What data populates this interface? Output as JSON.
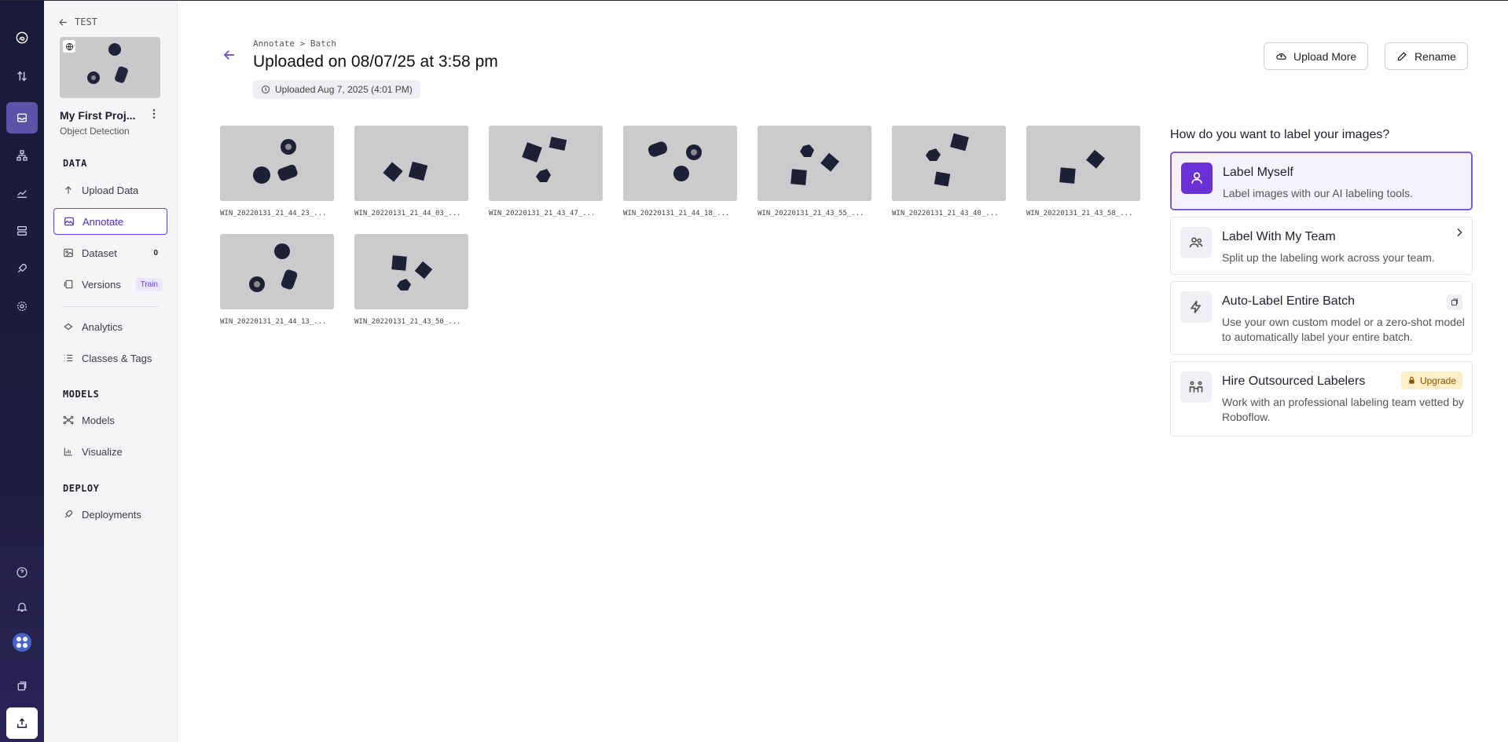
{
  "rail": {
    "items": [
      "logo-icon",
      "transfer-icon",
      "inbox-icon",
      "workflow-icon",
      "chart-icon",
      "server-icon",
      "rocket-icon",
      "gear-icon"
    ],
    "bottom": [
      "help-icon",
      "bell-icon",
      "avatar",
      "docs-icon",
      "upload-icon"
    ]
  },
  "sidebar": {
    "back_label": "TEST",
    "project_name": "My First Proj...",
    "project_type": "Object Detection",
    "sections": {
      "data": "DATA",
      "models": "MODELS",
      "deploy": "DEPLOY"
    },
    "items": {
      "upload_data": "Upload Data",
      "annotate": "Annotate",
      "dataset": "Dataset",
      "dataset_count": "0",
      "versions": "Versions",
      "versions_badge": "Train",
      "analytics": "Analytics",
      "classes_tags": "Classes & Tags",
      "models": "Models",
      "visualize": "Visualize",
      "deployments": "Deployments"
    }
  },
  "header": {
    "breadcrumb": "Annotate > Batch",
    "title": "Uploaded on 08/07/25 at 3:58 pm",
    "uploaded_chip": "Uploaded Aug 7, 2025 (4:01 PM)",
    "upload_more": "Upload More",
    "rename": "Rename"
  },
  "images": [
    "WIN_20220131_21_44_23_...",
    "WIN_20220131_21_44_03_...",
    "WIN_20220131_21_43_47_...",
    "WIN_20220131_21_44_18_...",
    "WIN_20220131_21_43_55_...",
    "WIN_20220131_21_43_40_...",
    "WIN_20220131_21_43_58_...",
    "WIN_20220131_21_44_13_...",
    "WIN_20220131_21_43_50_..."
  ],
  "labeling": {
    "question": "How do you want to label your images?",
    "options": [
      {
        "title": "Label Myself",
        "desc": "Label images with our AI labeling tools."
      },
      {
        "title": "Label With My Team",
        "desc": "Split up the labeling work across your team."
      },
      {
        "title": "Auto-Label Entire Batch",
        "desc": "Use your own custom model or a zero-shot model to automatically label your entire batch."
      },
      {
        "title": "Hire Outsourced Labelers",
        "desc": "Work with an professional labeling team vetted by Roboflow.",
        "badge": "Upgrade"
      }
    ]
  },
  "colors": {
    "accent": "#6a40d8",
    "rail_bg": "#1b1a3a",
    "upgrade_bg": "#fdefc7"
  }
}
